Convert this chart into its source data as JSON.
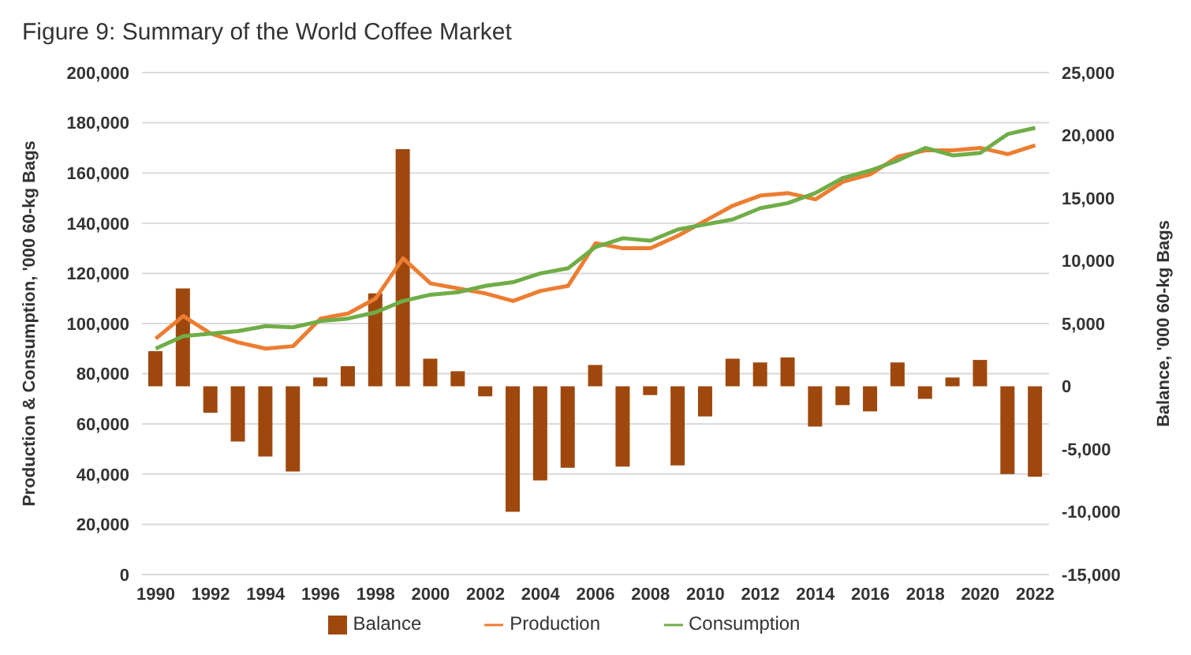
{
  "chart_data": {
    "type": "line",
    "title": "Figure 9: Summary of the World Coffee Market",
    "ylabel": "Production & Consumption, '000 60-kg Bags",
    "y2label": "Balance, '000 60-kg Bags",
    "x": [
      1990,
      1991,
      1992,
      1993,
      1994,
      1995,
      1996,
      1997,
      1998,
      1999,
      2000,
      2001,
      2002,
      2003,
      2004,
      2005,
      2006,
      2007,
      2008,
      2009,
      2010,
      2011,
      2012,
      2013,
      2014,
      2015,
      2016,
      2017,
      2018,
      2019,
      2020,
      2021,
      2022
    ],
    "xlim": [
      1989.5,
      2022.5
    ],
    "xticks": [
      1990,
      1992,
      1994,
      1996,
      1998,
      2000,
      2002,
      2004,
      2006,
      2008,
      2010,
      2012,
      2014,
      2016,
      2018,
      2020,
      2022
    ],
    "ylim": [
      0,
      200000
    ],
    "yticks": [
      0,
      {
        "value": 20000,
        "label": "20,000"
      },
      {
        "value": 40000,
        "label": "40,000"
      },
      {
        "value": 60000,
        "label": "60,000"
      },
      {
        "value": 80000,
        "label": "80,000"
      },
      {
        "value": 100000,
        "label": "100,000"
      },
      {
        "value": 120000,
        "label": "120,000"
      },
      {
        "value": 140000,
        "label": "140,000"
      },
      {
        "value": 160000,
        "label": "160,000"
      },
      {
        "value": 180000,
        "label": "180,000"
      },
      {
        "value": 200000,
        "label": "200,000"
      }
    ],
    "y2lim": [
      -15000,
      25000
    ],
    "y2ticks": [
      {
        "value": -15000,
        "label": "-15,000"
      },
      {
        "value": -10000,
        "label": "-10,000"
      },
      {
        "value": -5000,
        "label": "-5,000"
      },
      0,
      {
        "value": 5000,
        "label": "5,000"
      },
      {
        "value": 10000,
        "label": "10,000"
      },
      {
        "value": 15000,
        "label": "15,000"
      },
      {
        "value": 20000,
        "label": "20,000"
      },
      {
        "value": 25000,
        "label": "25,000"
      }
    ],
    "grid": "y",
    "legend": "bottom",
    "series": [
      {
        "name": "Balance",
        "type": "bar",
        "axis": "y2",
        "color": "#9e480e",
        "values": [
          2800,
          7800,
          -2100,
          -4400,
          -5600,
          -6800,
          700,
          1600,
          7400,
          18900,
          2200,
          1200,
          -800,
          -10000,
          -7500,
          -6500,
          1700,
          -6400,
          -700,
          -6300,
          -2400,
          2200,
          1900,
          2300,
          -3200,
          -1500,
          -2000,
          1900,
          -1000,
          700,
          2100,
          -7000,
          -7200
        ]
      },
      {
        "name": "Production",
        "color": "#ed7d31",
        "values": [
          94000,
          103000,
          96000,
          92500,
          90000,
          91000,
          102000,
          104000,
          110000,
          126000,
          116000,
          114000,
          112000,
          109000,
          113000,
          115000,
          132000,
          130000,
          130000,
          135000,
          141000,
          147000,
          151000,
          152000,
          149500,
          156500,
          159500,
          166500,
          169000,
          169000,
          170000,
          167500,
          171000
        ]
      },
      {
        "name": "Consumption",
        "color": "#70ad47",
        "values": [
          90000,
          95000,
          96000,
          97000,
          99000,
          98500,
          101000,
          102000,
          104500,
          109000,
          111500,
          112500,
          115000,
          116500,
          120000,
          122000,
          130500,
          134000,
          133000,
          137500,
          139500,
          141500,
          146000,
          148000,
          152000,
          158000,
          161000,
          165000,
          170000,
          167000,
          168000,
          175500,
          178000
        ]
      }
    ]
  }
}
